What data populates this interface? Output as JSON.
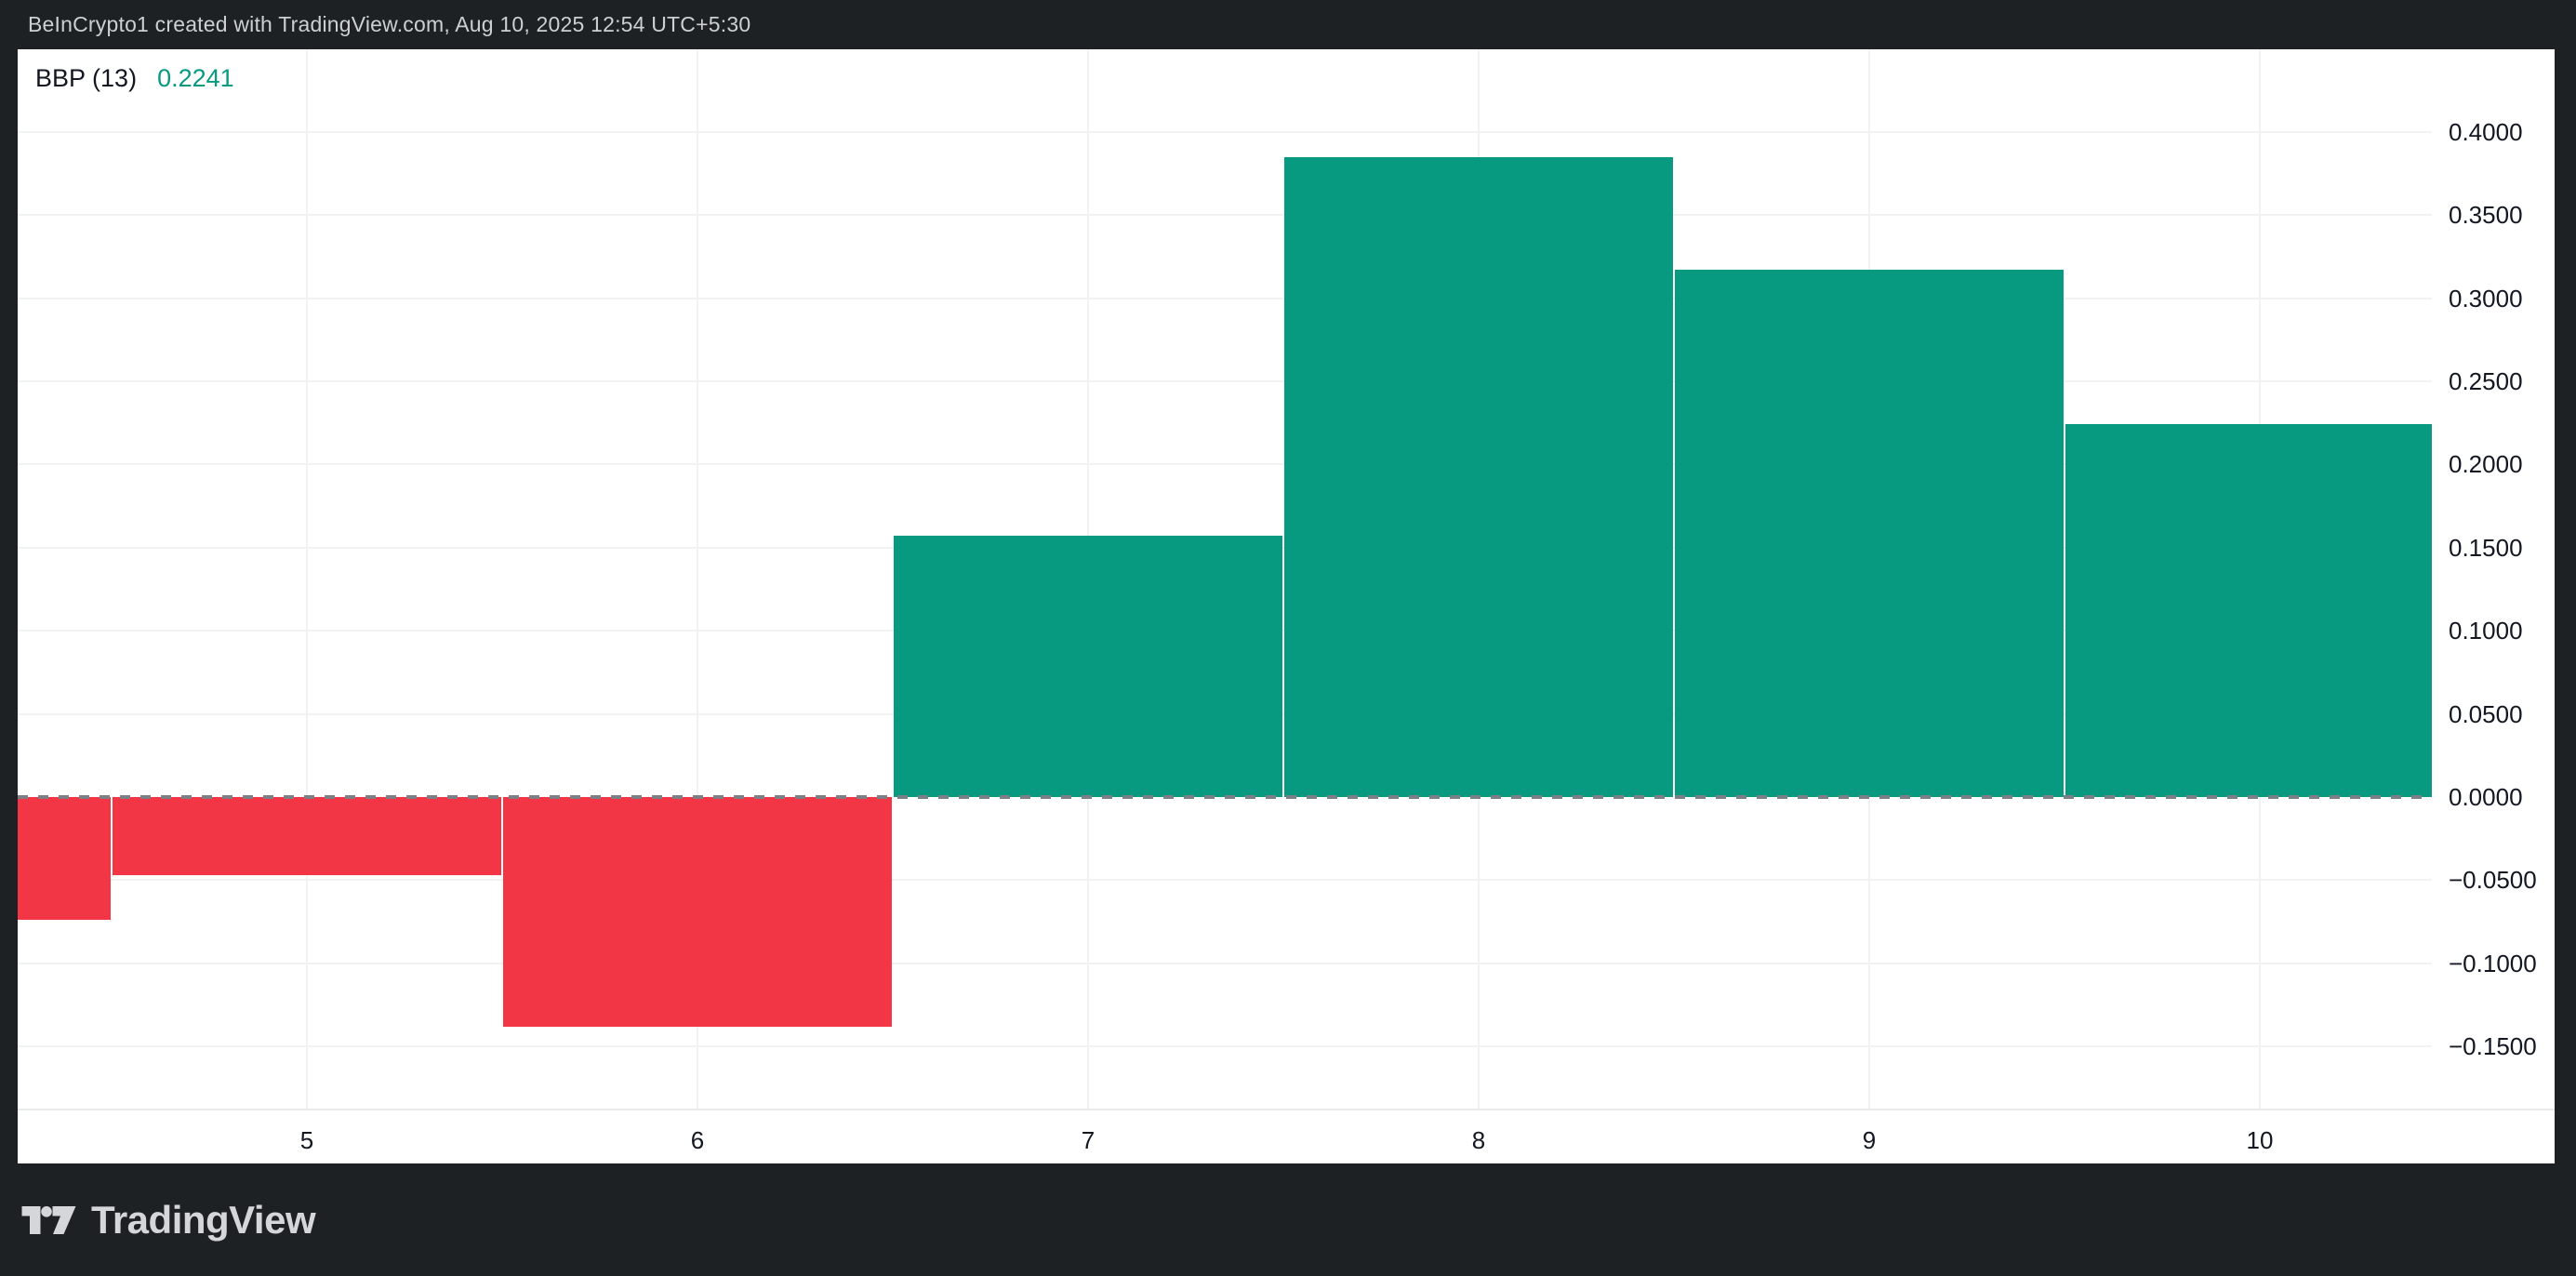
{
  "attribution": {
    "text": "BeInCrypto1 created with TradingView.com, Aug 10, 2025 12:54 UTC+5:30"
  },
  "legend": {
    "title": "BBP (13)",
    "value": "0.2241"
  },
  "footer": {
    "brand": "TradingView"
  },
  "colors": {
    "positive": "#089981",
    "negative": "#F23645",
    "value_text": "#089981",
    "frame_bg": "#1e2124",
    "grid": "#f1f2f4",
    "zero_line": "#7c8086",
    "axis_text": "#131722",
    "attribution_text": "#cdd0d3"
  },
  "chart_data": {
    "type": "bar",
    "title": "BBP (13)",
    "subtitle": "Bull Bear Power histogram",
    "latest_value": 0.2241,
    "x": [
      4,
      5,
      6,
      7,
      8,
      9,
      10
    ],
    "values": [
      -0.074,
      -0.047,
      -0.138,
      0.157,
      0.385,
      0.317,
      0.2241
    ],
    "series": [
      {
        "name": "BBP",
        "values": [
          -0.074,
          -0.047,
          -0.138,
          0.157,
          0.385,
          0.317,
          0.2241
        ]
      }
    ],
    "x_tick_labels": [
      "5",
      "6",
      "7",
      "8",
      "9",
      "10"
    ],
    "y_ticks": [
      {
        "value": 0.4,
        "label": "0.4000"
      },
      {
        "value": 0.35,
        "label": "0.3500"
      },
      {
        "value": 0.3,
        "label": "0.3000"
      },
      {
        "value": 0.25,
        "label": "0.2500"
      },
      {
        "value": 0.2,
        "label": "0.2000"
      },
      {
        "value": 0.15,
        "label": "0.1500"
      },
      {
        "value": 0.1,
        "label": "0.1000"
      },
      {
        "value": 0.05,
        "label": "0.0500"
      },
      {
        "value": 0.0,
        "label": "0.0000"
      },
      {
        "value": -0.05,
        "label": "−0.0500"
      },
      {
        "value": -0.1,
        "label": "−0.1000"
      },
      {
        "value": -0.15,
        "label": "−0.1500"
      }
    ],
    "ylim": [
      -0.187,
      0.45
    ],
    "zero_line": {
      "value": 0,
      "style": "dashed"
    },
    "grid": true,
    "legend_position": "top-left",
    "y_axis_position": "right",
    "notes": "first bar (x=4) clipped at left edge; last bar (x=10) clipped at right edge"
  }
}
